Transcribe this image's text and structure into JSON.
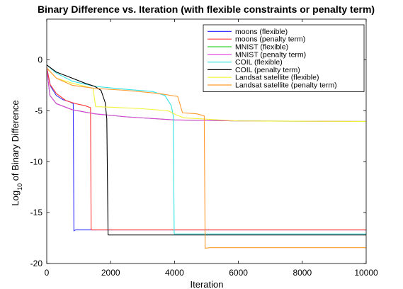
{
  "chart_data": {
    "type": "line",
    "title": "Binary Difference vs. Iteration (with flexible constraints or penalty term)",
    "xlabel": "Iteration",
    "ylabel": {
      "prefix": "Log",
      "subscript": "10",
      "suffix": " of Binary Difference"
    },
    "xlim": [
      0,
      10000
    ],
    "ylim": [
      -20,
      4
    ],
    "xticks": [
      0,
      2000,
      4000,
      6000,
      8000,
      10000
    ],
    "yticks": [
      0,
      -5,
      -10,
      -15,
      -20
    ],
    "grid": false,
    "legend_position": "top-right",
    "series": [
      {
        "name": "moons (flexible)",
        "color": "#3a3aff",
        "points": [
          [
            0,
            -0.8
          ],
          [
            120,
            -2.6
          ],
          [
            300,
            -3.5
          ],
          [
            500,
            -3.9
          ],
          [
            700,
            -4.1
          ],
          [
            830,
            -4.3
          ],
          [
            850,
            -16.8
          ],
          [
            900,
            -16.7
          ],
          [
            10000,
            -16.7
          ]
        ]
      },
      {
        "name": "moons (penalty term)",
        "color": "#ff3b3b",
        "points": [
          [
            0,
            -0.7
          ],
          [
            100,
            -2.4
          ],
          [
            300,
            -3.3
          ],
          [
            600,
            -4.0
          ],
          [
            900,
            -4.3
          ],
          [
            1200,
            -4.5
          ],
          [
            1370,
            -4.7
          ],
          [
            1390,
            -16.7
          ],
          [
            1450,
            -16.7
          ],
          [
            10000,
            -16.7
          ]
        ]
      },
      {
        "name": "MNIST (flexible)",
        "color": "#36d636",
        "points": [
          [
            0,
            -0.9
          ],
          [
            100,
            -3.5
          ],
          [
            300,
            -4.3
          ],
          [
            800,
            -4.9
          ],
          [
            1500,
            -5.3
          ],
          [
            2500,
            -5.6
          ],
          [
            4000,
            -5.9
          ],
          [
            6000,
            -6.0
          ],
          [
            10000,
            -6.05
          ]
        ]
      },
      {
        "name": "MNIST (penalty term)",
        "color": "#e03ee0",
        "points": [
          [
            0,
            -0.9
          ],
          [
            100,
            -3.5
          ],
          [
            300,
            -4.3
          ],
          [
            800,
            -4.9
          ],
          [
            1500,
            -5.3
          ],
          [
            2500,
            -5.6
          ],
          [
            4000,
            -5.9
          ],
          [
            6000,
            -6.0
          ],
          [
            10000,
            -6.05
          ]
        ]
      },
      {
        "name": "COIL (flexible)",
        "color": "#34e3e3",
        "points": [
          [
            0,
            -0.5
          ],
          [
            300,
            -1.3
          ],
          [
            800,
            -2.1
          ],
          [
            1500,
            -2.6
          ],
          [
            2500,
            -2.9
          ],
          [
            3300,
            -3.1
          ],
          [
            3700,
            -3.5
          ],
          [
            3900,
            -4.5
          ],
          [
            3960,
            -5.5
          ],
          [
            3990,
            -17.1
          ],
          [
            4050,
            -17.1
          ],
          [
            10000,
            -17.1
          ]
        ]
      },
      {
        "name": "COIL (penalty term)",
        "color": "#000000",
        "points": [
          [
            0,
            -0.5
          ],
          [
            300,
            -1.2
          ],
          [
            800,
            -1.8
          ],
          [
            1200,
            -2.3
          ],
          [
            1500,
            -2.6
          ],
          [
            1700,
            -3.0
          ],
          [
            1830,
            -4.2
          ],
          [
            1880,
            -5.8
          ],
          [
            1920,
            -17.2
          ],
          [
            1980,
            -17.2
          ],
          [
            10000,
            -17.2
          ]
        ]
      },
      {
        "name": "Landsat satellite (flexible)",
        "color": "#f2f23a",
        "points": [
          [
            0,
            -0.8
          ],
          [
            300,
            -1.8
          ],
          [
            800,
            -2.3
          ],
          [
            1200,
            -2.6
          ],
          [
            1450,
            -2.8
          ],
          [
            1530,
            -4.6
          ],
          [
            2000,
            -4.65
          ],
          [
            3000,
            -4.8
          ],
          [
            3800,
            -5.0
          ],
          [
            4050,
            -5.4
          ],
          [
            4300,
            -5.7
          ],
          [
            6000,
            -6.0
          ],
          [
            10000,
            -6.05
          ]
        ]
      },
      {
        "name": "Landsat satellite (penalty term)",
        "color": "#ff9a2e",
        "points": [
          [
            0,
            -0.8
          ],
          [
            300,
            -1.8
          ],
          [
            800,
            -2.5
          ],
          [
            1500,
            -2.8
          ],
          [
            2500,
            -3.0
          ],
          [
            3500,
            -3.3
          ],
          [
            4100,
            -3.6
          ],
          [
            4250,
            -5.2
          ],
          [
            4700,
            -5.3
          ],
          [
            4930,
            -5.5
          ],
          [
            4960,
            -18.5
          ],
          [
            5100,
            -18.45
          ],
          [
            10000,
            -18.45
          ]
        ]
      }
    ]
  }
}
